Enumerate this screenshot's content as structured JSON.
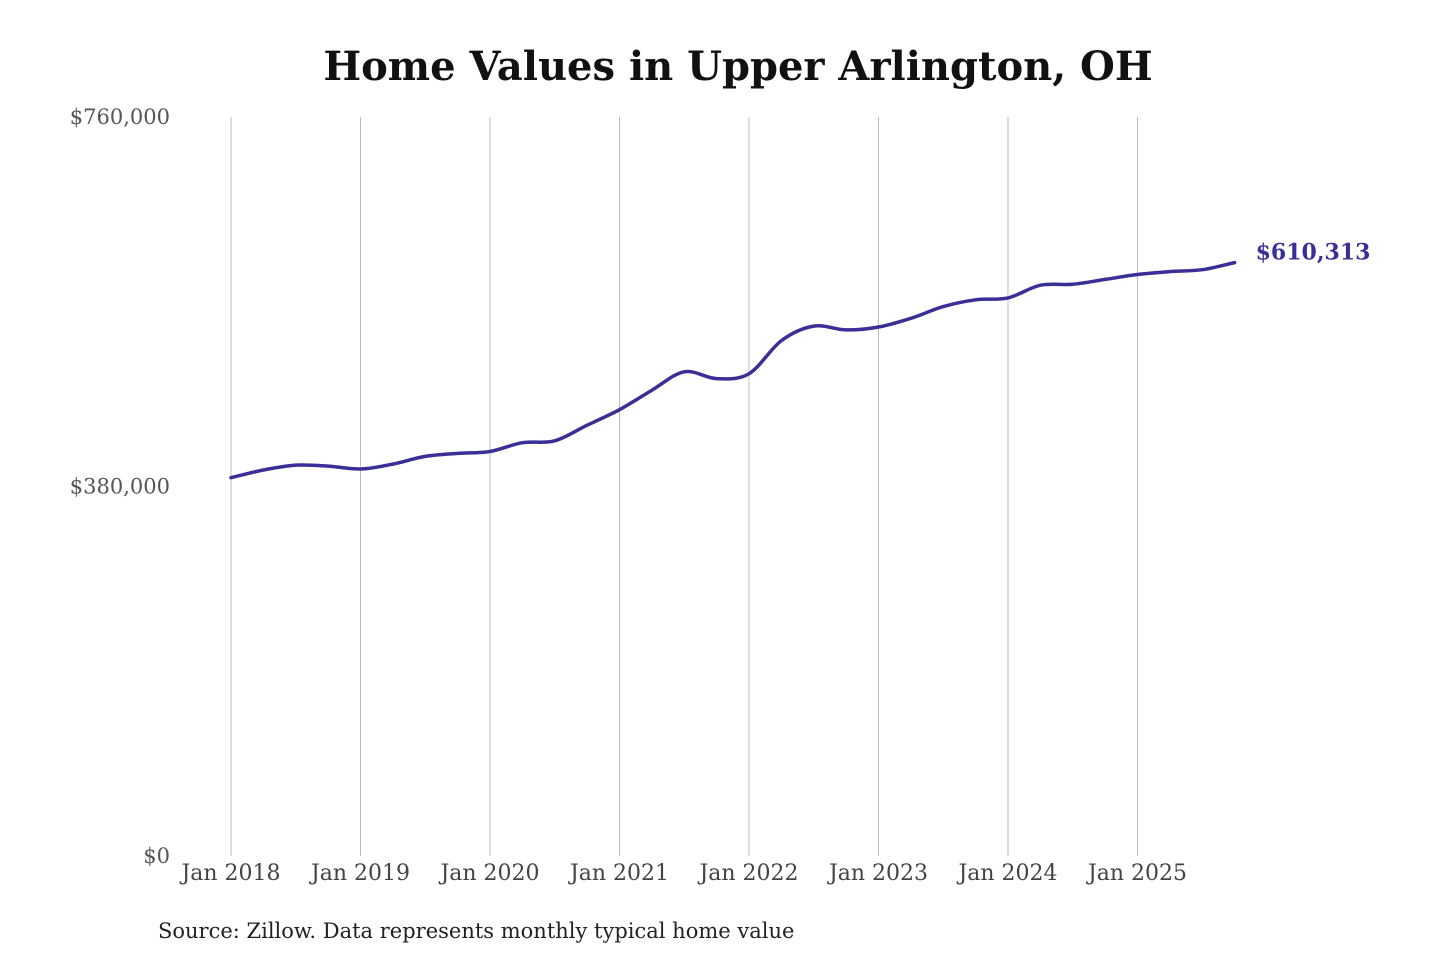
{
  "chart_data": {
    "type": "line",
    "title": "Home Values in Upper Arlington, OH",
    "xlabel": "",
    "ylabel": "",
    "ylim": [
      0,
      760000
    ],
    "yticks": [
      0,
      380000,
      760000
    ],
    "ytick_labels": [
      "$0",
      "$380,000",
      "$760,000"
    ],
    "xticks": [
      "2018-01",
      "2019-01",
      "2020-01",
      "2021-01",
      "2022-01",
      "2023-01",
      "2024-01",
      "2025-01"
    ],
    "xtick_labels": [
      "Jan 2018",
      "Jan 2019",
      "Jan 2020",
      "Jan 2021",
      "Jan 2022",
      "Jan 2023",
      "Jan 2024",
      "Jan 2025"
    ],
    "x_range": [
      "2018-01",
      "2025-10"
    ],
    "grid": "vertical",
    "series": [
      {
        "color": "#3a2f97",
        "end_label": "$610,313",
        "x": [
          "2018-01",
          "2018-04",
          "2018-07",
          "2018-10",
          "2019-01",
          "2019-04",
          "2019-07",
          "2019-10",
          "2020-01",
          "2020-04",
          "2020-07",
          "2020-10",
          "2021-01",
          "2021-04",
          "2021-07",
          "2021-10",
          "2022-01",
          "2022-04",
          "2022-07",
          "2022-10",
          "2023-01",
          "2023-04",
          "2023-07",
          "2023-10",
          "2024-01",
          "2024-04",
          "2024-07",
          "2024-10",
          "2025-01",
          "2025-04",
          "2025-07",
          "2025-10"
        ],
        "values": [
          389000,
          397000,
          402000,
          401000,
          398000,
          403000,
          411000,
          414000,
          416000,
          425000,
          427000,
          443000,
          459000,
          479000,
          498000,
          491000,
          496000,
          530000,
          545000,
          541000,
          544000,
          553000,
          565000,
          572000,
          574000,
          587000,
          588000,
          593000,
          598000,
          601000,
          603000,
          610313
        ]
      }
    ]
  },
  "source_note": "Source: Zillow. Data represents monthly typical home value"
}
